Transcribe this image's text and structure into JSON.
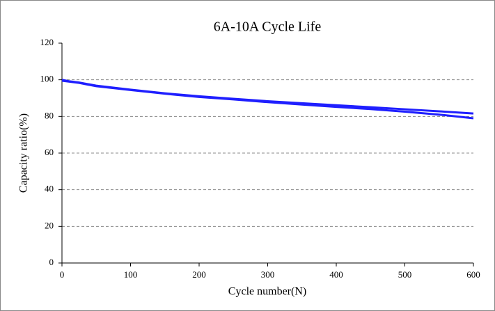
{
  "chart_data": {
    "type": "line",
    "title": "6A-10A Cycle Life",
    "x_label": "Cycle number(N)",
    "y_label": "Capacity ratio(%)",
    "x": [
      0,
      10,
      25,
      50,
      100,
      150,
      200,
      250,
      300,
      350,
      400,
      450,
      500,
      550,
      600
    ],
    "series": [
      {
        "color": "#1f1fff",
        "values": [
          100,
          99.2,
          98.5,
          96.8,
          94.6,
          92.6,
          91,
          89.6,
          88.3,
          87.2,
          86.1,
          85,
          83.9,
          82.8,
          81.6
        ]
      },
      {
        "color": "#1f1fff",
        "values": [
          99.5,
          99,
          98.3,
          96.5,
          94.4,
          92.4,
          90.6,
          89.3,
          87.8,
          86.5,
          85.2,
          84,
          82.6,
          81,
          79
        ]
      }
    ],
    "xlim": [
      0,
      600
    ],
    "xticks": [
      0,
      100,
      200,
      300,
      400,
      500,
      600
    ],
    "ylim": [
      0,
      120
    ],
    "yticks": [
      0,
      20,
      40,
      60,
      80,
      100,
      120
    ],
    "grid": true
  }
}
